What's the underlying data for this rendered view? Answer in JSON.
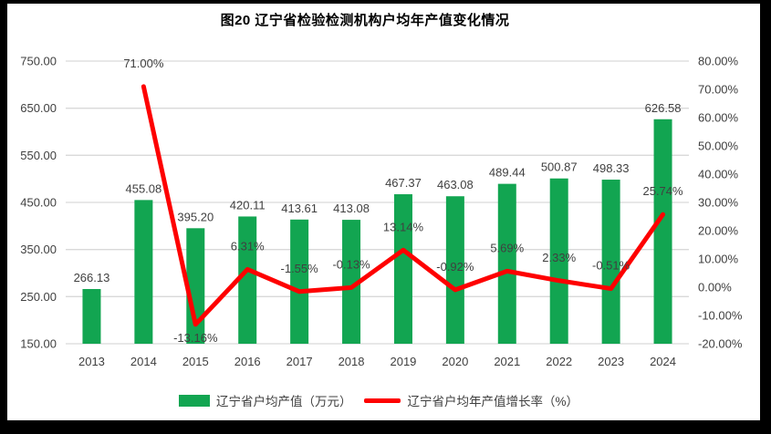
{
  "page": {
    "background": "#ffffff",
    "frame_color": "#000000"
  },
  "chart_data": {
    "type": "combo",
    "title": "图20 辽宁省检验检测机构户均年产值变化情况",
    "categories": [
      "2013",
      "2014",
      "2015",
      "2016",
      "2017",
      "2018",
      "2019",
      "2020",
      "2021",
      "2022",
      "2023",
      "2024"
    ],
    "series": [
      {
        "name": "辽宁省户均产值（万元）",
        "type": "bar",
        "axis": "left",
        "color": "#12A551",
        "values": [
          266.13,
          455.08,
          395.2,
          420.11,
          413.61,
          413.08,
          467.37,
          463.08,
          489.44,
          500.87,
          498.33,
          626.58
        ],
        "data_labels": [
          "266.13",
          "455.08",
          "395.20",
          "420.11",
          "413.61",
          "413.08",
          "467.37",
          "463.08",
          "489.44",
          "500.87",
          "498.33",
          "626.58"
        ]
      },
      {
        "name": "辽宁省户均年产值增长率（%）",
        "type": "line",
        "axis": "right",
        "color": "#FE0000",
        "values": [
          null,
          71.0,
          -13.16,
          6.31,
          -1.55,
          -0.13,
          13.14,
          -0.92,
          5.69,
          2.33,
          -0.51,
          25.74
        ],
        "data_labels": [
          null,
          "71.00%",
          "-13.16%",
          "6.31%",
          "-1.55%",
          "-0.13%",
          "13.14%",
          "-0.92%",
          "5.69%",
          "2.33%",
          "-0.51%",
          "25.74%"
        ],
        "labels_below_indices": [
          2
        ]
      }
    ],
    "left_axis": {
      "min": 150,
      "max": 750,
      "ticks": [
        150,
        250,
        350,
        450,
        550,
        650,
        750
      ],
      "tick_labels": [
        "150.00",
        "250.00",
        "350.00",
        "450.00",
        "550.00",
        "650.00",
        "750.00"
      ]
    },
    "right_axis": {
      "min": -20,
      "max": 80,
      "ticks": [
        -20,
        -10,
        0,
        10,
        20,
        30,
        40,
        50,
        60,
        70,
        80
      ],
      "tick_labels": [
        "-20.00%",
        "-10.00%",
        "0.00%",
        "10.00%",
        "20.00%",
        "30.00%",
        "40.00%",
        "50.00%",
        "60.00%",
        "70.00%",
        "80.00%"
      ]
    },
    "grid": "horizontal-only",
    "gridline_color": "#D9D9D9",
    "text_color": "#404040",
    "legend_position": "bottom"
  }
}
